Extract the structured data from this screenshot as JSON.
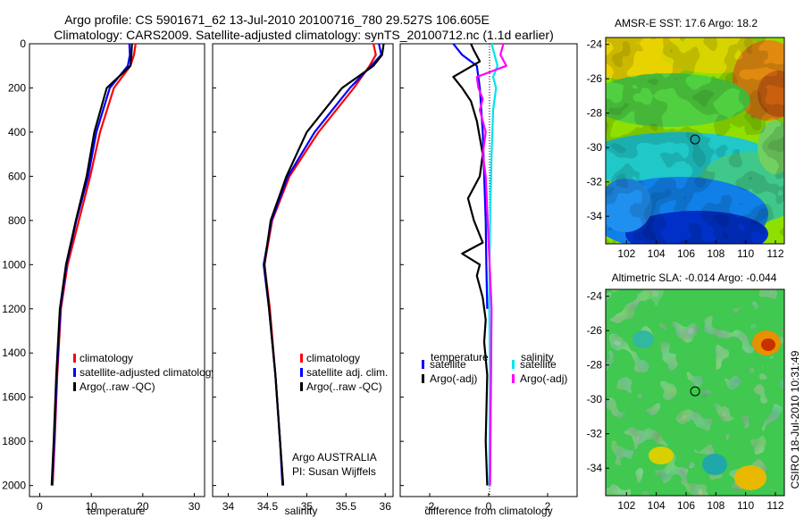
{
  "header": {
    "line1": "Argo profile: CS 5901671_62 13-Jul-2010 20100716_780 29.527S 106.605E",
    "line2": "Climatology: CARS2009. Satellite-adjusted climatology: synTS_20100712.nc (1.1d earlier)"
  },
  "colors": {
    "climatology": "#ff0000",
    "satellite": "#0000ff",
    "argo": "#000000",
    "sal_satellite": "#00e5ee",
    "sal_argo": "#ff00ff"
  },
  "chart_data": [
    {
      "type": "line",
      "xlabel": "temperature",
      "ylabel": "",
      "xlim": [
        -2,
        32
      ],
      "ylim": [
        2050,
        0
      ],
      "xticks": [
        0,
        10,
        20,
        30
      ],
      "yticks": [
        0,
        200,
        400,
        600,
        800,
        1000,
        1200,
        1400,
        1600,
        1800,
        2000
      ],
      "legend": {
        "placement": "bottom-center",
        "entries": [
          "climatology",
          "satellite-adjusted climatology",
          "Argo(..raw -QC)"
        ]
      },
      "series": [
        {
          "name": "climatology",
          "color": "climatology",
          "x": [
            18.6,
            18.3,
            17.6,
            14.4,
            11.7,
            9.8,
            7.6,
            5.4,
            4.1,
            3.4,
            2.9,
            2.5
          ],
          "depth": [
            0,
            50,
            100,
            200,
            400,
            600,
            800,
            1000,
            1200,
            1500,
            1800,
            2000
          ]
        },
        {
          "name": "satellite-adjusted climatology",
          "color": "satellite",
          "x": [
            17.4,
            17.5,
            17.1,
            13.6,
            11.0,
            9.4,
            7.1,
            5.2,
            4.0,
            3.3,
            2.8,
            2.4
          ],
          "depth": [
            0,
            50,
            100,
            200,
            400,
            600,
            800,
            1000,
            1200,
            1500,
            1800,
            2000
          ]
        },
        {
          "name": "Argo(..raw -QC)",
          "color": "argo",
          "x": [
            17.9,
            17.8,
            17.6,
            13.0,
            10.6,
            9.1,
            7.0,
            5.1,
            3.9,
            3.2,
            2.7,
            2.3
          ],
          "depth": [
            0,
            50,
            100,
            200,
            400,
            600,
            800,
            1000,
            1200,
            1500,
            1800,
            2000
          ]
        }
      ]
    },
    {
      "type": "line",
      "xlabel": "salinity",
      "xlim": [
        33.8,
        36.1
      ],
      "ylim": [
        2050,
        0
      ],
      "xticks": [
        34,
        34.5,
        35,
        35.5,
        36
      ],
      "xtick_labels": [
        "34",
        "34.5",
        "35",
        "35.5",
        "36"
      ],
      "legend": {
        "placement": "bottom-center",
        "entries": [
          "climatology",
          "satellite adj. clim.",
          "Argo(..raw -QC)"
        ]
      },
      "annotation": {
        "line1": "Argo AUSTRALIA",
        "line2": "PI: Susan Wijffels"
      },
      "series": [
        {
          "name": "climatology",
          "color": "climatology",
          "x": [
            35.85,
            35.88,
            35.8,
            35.6,
            35.15,
            34.78,
            34.56,
            34.46,
            34.53,
            34.6,
            34.66,
            34.7
          ],
          "depth": [
            0,
            50,
            100,
            200,
            400,
            600,
            800,
            1000,
            1200,
            1500,
            1800,
            2000
          ]
        },
        {
          "name": "satellite adj. clim.",
          "color": "satellite",
          "x": [
            35.92,
            35.95,
            35.82,
            35.55,
            35.1,
            34.76,
            34.55,
            34.45,
            34.52,
            34.6,
            34.66,
            34.69
          ],
          "depth": [
            0,
            50,
            100,
            200,
            400,
            600,
            800,
            1000,
            1200,
            1500,
            1800,
            2000
          ]
        },
        {
          "name": "Argo(..raw -QC)",
          "color": "argo",
          "x": [
            35.98,
            35.96,
            35.85,
            35.45,
            35.0,
            34.74,
            34.54,
            34.46,
            34.52,
            34.6,
            34.66,
            34.7
          ],
          "depth": [
            0,
            50,
            100,
            200,
            400,
            600,
            800,
            1000,
            1200,
            1500,
            1800,
            2000
          ]
        }
      ]
    },
    {
      "type": "line",
      "xlabel": "difference from climatology",
      "xlim": [
        -3,
        3
      ],
      "ylim": [
        2050,
        0
      ],
      "xticks": [
        -2,
        0,
        2
      ],
      "legend": {
        "placement": "bottom-center",
        "group_titles": [
          "temperature",
          "salinity"
        ],
        "entries": [
          "satellite",
          "Argo(-adj)",
          "satellite",
          "Argo(-adj)"
        ]
      },
      "series": [
        {
          "name": "temperature satellite",
          "color": "satellite",
          "x": [
            -1.2,
            -0.9,
            -0.4,
            -0.3,
            -0.2,
            -0.15,
            -0.1,
            -0.08,
            -0.05
          ],
          "depth": [
            0,
            50,
            100,
            200,
            400,
            600,
            800,
            1000,
            1200
          ]
        },
        {
          "name": "temperature Argo(-adj)",
          "color": "argo",
          "x": [
            -0.6,
            -0.5,
            -0.3,
            -1.2,
            -0.9,
            -0.6,
            -0.4,
            -0.2,
            -0.3,
            -0.7,
            -0.5,
            -0.2,
            -0.9,
            -0.3,
            -0.4,
            -0.2,
            -0.1,
            -0.15,
            -0.05,
            -0.1,
            -0.05
          ],
          "depth": [
            0,
            30,
            80,
            150,
            200,
            260,
            350,
            500,
            600,
            700,
            800,
            900,
            950,
            1000,
            1050,
            1150,
            1250,
            1350,
            1500,
            1800,
            2000
          ]
        },
        {
          "name": "salinity satellite",
          "color": "sal_satellite",
          "x": [
            0.1,
            0.2,
            0.3,
            0.15,
            0.25,
            0.15,
            0.1,
            0.05,
            0.03,
            0.02,
            0.05,
            0.02
          ],
          "depth": [
            0,
            50,
            100,
            150,
            200,
            300,
            500,
            800,
            1000,
            1200,
            1500,
            2000
          ]
        },
        {
          "name": "salinity Argo(-adj)",
          "color": "sal_argo",
          "x": [
            0.5,
            0.4,
            0.6,
            -0.4,
            -0.35,
            -0.2,
            -0.3,
            -0.1,
            -0.2,
            -0.1,
            0.0,
            0.1,
            0.05
          ],
          "depth": [
            0,
            50,
            100,
            150,
            200,
            250,
            300,
            400,
            500,
            600,
            900,
            1200,
            2000
          ]
        }
      ]
    },
    {
      "type": "heatmap",
      "title": "AMSR-E SST: 17.6 Argo: 18.2",
      "xticks": [
        102,
        104,
        106,
        108,
        110,
        112
      ],
      "yticks": [
        -24,
        -26,
        -28,
        -30,
        -32,
        -34
      ],
      "xlim": [
        100.6,
        112.6
      ],
      "ylim": [
        -35.6,
        -23.6
      ],
      "marker": {
        "lon": 106.605,
        "lat": -29.527
      }
    },
    {
      "type": "heatmap",
      "title": "Altimetric SLA: -0.014 Argo: -0.044",
      "xticks": [
        102,
        104,
        106,
        108,
        110,
        112
      ],
      "yticks": [
        -24,
        -26,
        -28,
        -30,
        -32,
        -34
      ],
      "xlim": [
        100.6,
        112.6
      ],
      "ylim": [
        -35.6,
        -23.6
      ],
      "marker": {
        "lon": 106.605,
        "lat": -29.527
      }
    }
  ],
  "footer": {
    "stamp": "CSIRO 18-Jul-2010 10:31:49"
  }
}
